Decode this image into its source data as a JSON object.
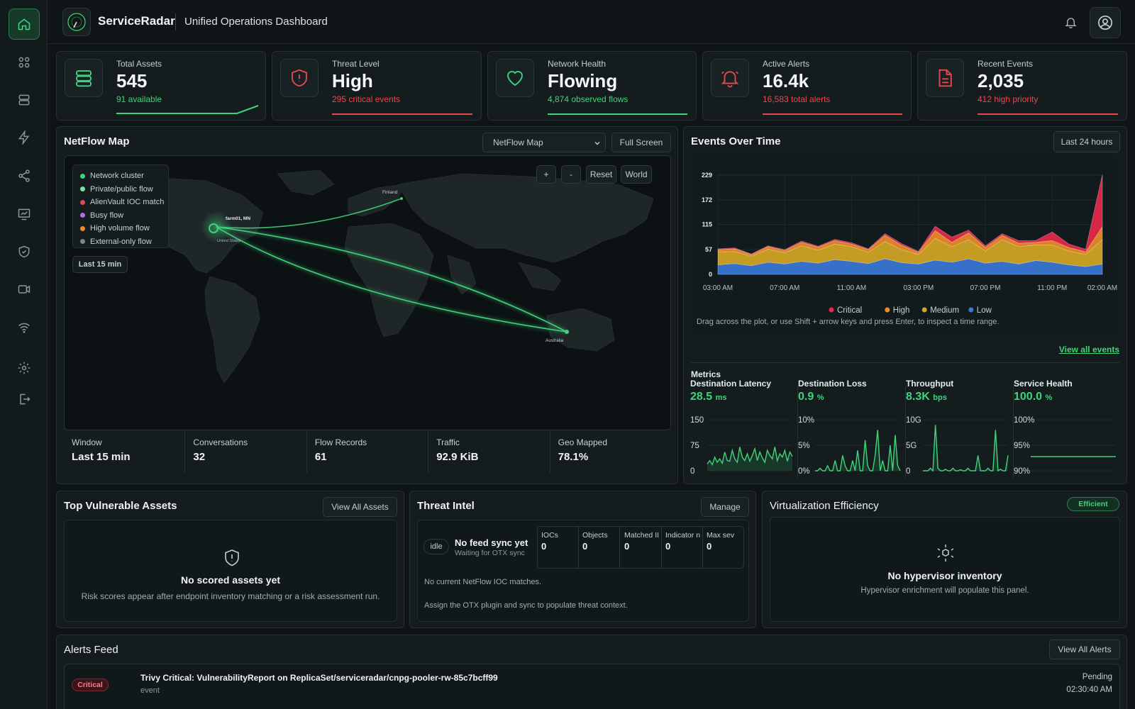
{
  "app": {
    "brand": "ServiceRadar",
    "title": "Unified Operations Dashboard"
  },
  "sidebar": {
    "items": [
      "home-icon",
      "apps-icon",
      "devices-icon",
      "events-icon",
      "network-icon",
      "analytics-icon",
      "security-icon",
      "cameras-icon",
      "wifi-icon",
      "settings-icon",
      "logout-icon"
    ],
    "active": "home-icon"
  },
  "kpis": [
    {
      "label": "Total Assets",
      "value": "545",
      "sub": "91 available",
      "tone": "green",
      "icon": "database-icon"
    },
    {
      "label": "Threat Level",
      "value": "High",
      "sub": "295 critical events",
      "tone": "red",
      "icon": "shield-alert-icon"
    },
    {
      "label": "Network Health",
      "value": "Flowing",
      "sub": "4,874 observed flows",
      "tone": "green",
      "icon": "heart-icon"
    },
    {
      "label": "Active Alerts",
      "value": "16.4k",
      "sub": "16,583 total alerts",
      "tone": "red",
      "icon": "bell-icon"
    },
    {
      "label": "Recent Events",
      "value": "2,035",
      "sub": "412 high priority",
      "tone": "red",
      "icon": "file-alert-icon"
    }
  ],
  "netflow": {
    "title": "NetFlow Map",
    "select": "NetFlow Map",
    "fullscreen": "Full Screen",
    "controls": {
      "zoom_in": "+",
      "zoom_out": "-",
      "reset": "Reset",
      "world": "World"
    },
    "legend": [
      {
        "label": "Network cluster",
        "color": "#3fd47b"
      },
      {
        "label": "Private/public flow",
        "color": "#7be0a0"
      },
      {
        "label": "AlienVault IOC match",
        "color": "#e8474f"
      },
      {
        "label": "Busy flow",
        "color": "#b06ee8"
      },
      {
        "label": "High volume flow",
        "color": "#f08a24"
      },
      {
        "label": "External-only flow",
        "color": "#7c8485"
      }
    ],
    "window_badge": "Last 15 min",
    "places": {
      "finland": "Finland",
      "origin": "farm01, MN",
      "us": "United States",
      "australia": "Australia"
    },
    "stats": [
      {
        "label": "Window",
        "value": "Last 15 min"
      },
      {
        "label": "Conversations",
        "value": "32"
      },
      {
        "label": "Flow Records",
        "value": "61"
      },
      {
        "label": "Traffic",
        "value": "92.9 KiB"
      },
      {
        "label": "Geo Mapped",
        "value": "78.1%"
      }
    ]
  },
  "events": {
    "title": "Events Over Time",
    "range_button": "Last 24 hours",
    "hint": "Drag across the plot, or use Shift + arrow keys and press Enter, to inspect a time range.",
    "view_all": "View all events"
  },
  "chart_data": {
    "type": "area",
    "x": [
      "03:00 AM",
      "04:00 AM",
      "05:00 AM",
      "06:00 AM",
      "07:00 AM",
      "08:00 AM",
      "09:00 AM",
      "10:00 AM",
      "11:00 AM",
      "12:00 PM",
      "01:00 PM",
      "02:00 PM",
      "03:00 PM",
      "04:00 PM",
      "05:00 PM",
      "06:00 PM",
      "07:00 PM",
      "08:00 PM",
      "09:00 PM",
      "10:00 PM",
      "11:00 PM",
      "12:00 AM",
      "01:00 AM",
      "02:00 AM"
    ],
    "xticks": [
      "03:00 AM",
      "07:00 AM",
      "11:00 AM",
      "03:00 PM",
      "07:00 PM",
      "11:00 PM",
      "02:00 AM"
    ],
    "yticks": [
      0,
      57,
      115,
      172,
      229
    ],
    "ylim": [
      0,
      229
    ],
    "colors": {
      "Critical": "#e8294b",
      "High": "#f08a24",
      "Medium": "#d4a824",
      "Low": "#3a78d8"
    },
    "series": [
      {
        "name": "Low",
        "values": [
          22,
          25,
          20,
          28,
          24,
          30,
          26,
          34,
          30,
          25,
          36,
          27,
          24,
          33,
          28,
          36,
          26,
          30,
          24,
          32,
          28,
          22,
          18,
          24
        ]
      },
      {
        "name": "Medium",
        "values": [
          30,
          28,
          22,
          30,
          26,
          36,
          30,
          36,
          34,
          26,
          40,
          30,
          22,
          50,
          36,
          44,
          28,
          50,
          40,
          36,
          40,
          32,
          28,
          56
        ]
      },
      {
        "name": "High",
        "values": [
          5,
          6,
          4,
          6,
          5,
          8,
          7,
          8,
          6,
          6,
          14,
          10,
          5,
          18,
          10,
          16,
          8,
          10,
          8,
          6,
          10,
          8,
          6,
          30
        ]
      },
      {
        "name": "Critical",
        "values": [
          2,
          2,
          1,
          2,
          2,
          3,
          2,
          3,
          3,
          2,
          4,
          4,
          2,
          10,
          12,
          6,
          4,
          4,
          6,
          4,
          20,
          8,
          6,
          120
        ]
      }
    ],
    "legend": [
      "Critical",
      "High",
      "Medium",
      "Low"
    ]
  },
  "metrics": {
    "title": "Metrics",
    "items": [
      {
        "label": "Destination Latency",
        "value": "28.5",
        "unit": "ms",
        "ticks": [
          "150",
          "75",
          "0"
        ],
        "ymax": 150,
        "values": [
          20,
          30,
          18,
          40,
          25,
          35,
          22,
          55,
          30,
          28,
          60,
          35,
          25,
          70,
          40,
          30,
          50,
          28,
          45,
          65,
          30,
          55,
          38,
          25,
          60,
          45,
          35,
          70,
          30,
          50,
          40,
          60,
          28,
          55,
          42
        ]
      },
      {
        "label": "Destination Loss",
        "value": "0.9",
        "unit": "%",
        "ticks": [
          "10%",
          "5%",
          "0%"
        ],
        "ymax": 10,
        "values": [
          0,
          0,
          0.5,
          0,
          0,
          1,
          0,
          0,
          2,
          0,
          0,
          3,
          1,
          0,
          0,
          2,
          0,
          4,
          0,
          0,
          6,
          1,
          0,
          0,
          3,
          8,
          0,
          2,
          0,
          0,
          5,
          0,
          7,
          1,
          0
        ]
      },
      {
        "label": "Throughput",
        "value": "8.3K",
        "unit": "bps",
        "ticks": [
          "10G",
          "5G",
          "0"
        ],
        "ymax": 10,
        "values": [
          0,
          0,
          0,
          0.5,
          0,
          9,
          0.5,
          0,
          0,
          0.3,
          0,
          0,
          0.5,
          0,
          0,
          0.2,
          0,
          0,
          0.5,
          0,
          0,
          0,
          3,
          0,
          0,
          0,
          0.5,
          0,
          0,
          8,
          0,
          0.3,
          0,
          0,
          3
        ]
      },
      {
        "label": "Service Health",
        "value": "100.0",
        "unit": "%",
        "ticks": [
          "100%",
          "95%",
          "90%"
        ],
        "ymax": 100,
        "values": []
      }
    ]
  },
  "vulnerable": {
    "title": "Top Vulnerable Assets",
    "button": "View All Assets",
    "empty_title": "No scored assets yet",
    "empty_text": "Risk scores appear after endpoint inventory matching or a risk assessment run."
  },
  "threat": {
    "title": "Threat Intel",
    "button": "Manage",
    "status": "idle",
    "heading": "No feed sync yet",
    "subheading": "Waiting for OTX sync",
    "cols": [
      {
        "label": "IOCs",
        "value": "0"
      },
      {
        "label": "Objects",
        "value": "0"
      },
      {
        "label": "Matched II",
        "value": "0"
      },
      {
        "label": "Indicator n",
        "value": "0"
      },
      {
        "label": "Max sev",
        "value": "0"
      }
    ],
    "note1": "No current NetFlow IOC matches.",
    "note2": "Assign the OTX plugin and sync to populate threat context."
  },
  "virt": {
    "title": "Virtualization Efficiency",
    "badge": "Efficient",
    "empty_title": "No hypervisor inventory",
    "empty_text": "Hypervisor enrichment will populate this panel."
  },
  "alerts": {
    "title": "Alerts Feed",
    "button": "View All Alerts",
    "rows": [
      {
        "severity": "Critical",
        "title": "Trivy Critical: VulnerabilityReport on ReplicaSet/serviceradar/cnpg-pooler-rw-85c7bcff99",
        "type": "event",
        "status": "Pending",
        "time": "02:30:40 AM"
      }
    ]
  }
}
